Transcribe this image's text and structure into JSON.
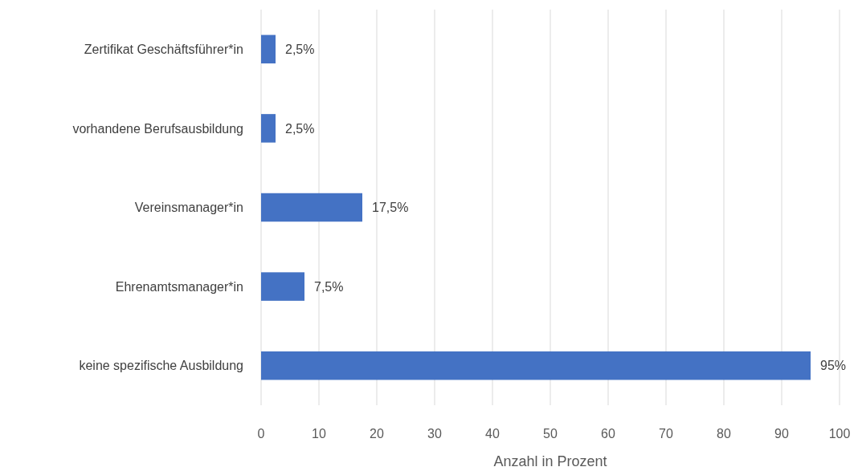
{
  "chart_data": {
    "type": "bar",
    "orientation": "horizontal",
    "xlabel": "Anzahl in Prozent",
    "categories": [
      "Zertifikat Geschäftsführer*in",
      "vorhandene Berufsausbildung",
      "Vereinsmanager*in",
      "Ehrenamtsmanager*in",
      "keine spezifische Ausbildung"
    ],
    "values": [
      2.5,
      2.5,
      17.5,
      7.5,
      95
    ],
    "value_labels": [
      "2,5%",
      "2,5%",
      "17,5%",
      "7,5%",
      "95%"
    ],
    "color": "#4472c4",
    "xlim": [
      0,
      100
    ],
    "xticks": [
      0,
      10,
      20,
      30,
      40,
      50,
      60,
      70,
      80,
      90,
      100
    ],
    "grid": "x"
  }
}
